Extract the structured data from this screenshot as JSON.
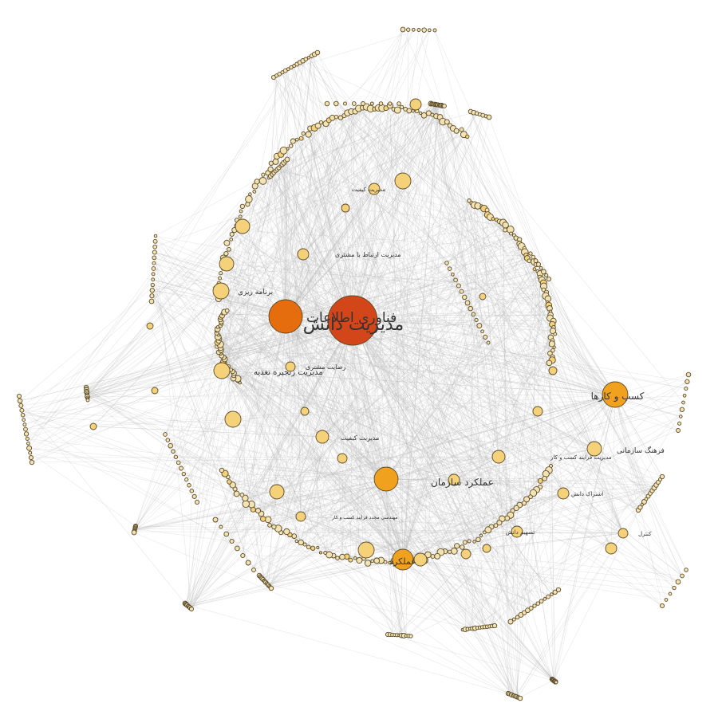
{
  "graph": {
    "colors": {
      "edge": "#b9b9b9",
      "hub": "#d2461a",
      "major": "#e56d0e",
      "mid": "#f0a21f",
      "minor": "#f5d27a",
      "leaf": "#f3e3b2",
      "outline": "#5a4a2a",
      "label": "#333333"
    },
    "labeled_nodes": [
      {
        "id": "km",
        "label": "مدیریت دانش",
        "tier": "hub"
      },
      {
        "id": "it",
        "label": "فناوری اطلاعات",
        "tier": "major"
      },
      {
        "id": "biz",
        "label": "کسب و کارها",
        "tier": "mid"
      },
      {
        "id": "perf",
        "label": "عملکرد سازمان",
        "tier": "mid"
      },
      {
        "id": "perf2",
        "label": "عملکرد",
        "tier": "mid"
      },
      {
        "id": "nutr",
        "label": "مدیریت زنجیره تغذیه",
        "tier": "minor"
      },
      {
        "id": "plan",
        "label": "برنامه ریزی",
        "tier": "minor"
      },
      {
        "id": "crm",
        "label": "مدیریت ارتباط با مشتری",
        "tier": "minor"
      },
      {
        "id": "sat",
        "label": "رضایت مشتری",
        "tier": "minor"
      },
      {
        "id": "qual",
        "label": "مدیریت کیفیت",
        "tier": "minor"
      },
      {
        "id": "culture",
        "label": "فرهنگ سازمانی",
        "tier": "minor"
      },
      {
        "id": "bpm",
        "label": "مدیریت فرایند کسب و کار",
        "tier": "minor"
      },
      {
        "id": "share",
        "label": "اشتراک دانش",
        "tier": "minor"
      },
      {
        "id": "tqm",
        "label": "مدیریت کیفیت",
        "tier": "minor"
      },
      {
        "id": "eng",
        "label": "مهندسی مجدد فرایند کسب و کار",
        "tier": "minor"
      },
      {
        "id": "share2",
        "label": "تسهیم دانش",
        "tier": "minor"
      },
      {
        "id": "ctrl",
        "label": "کنترل",
        "tier": "minor"
      }
    ]
  }
}
